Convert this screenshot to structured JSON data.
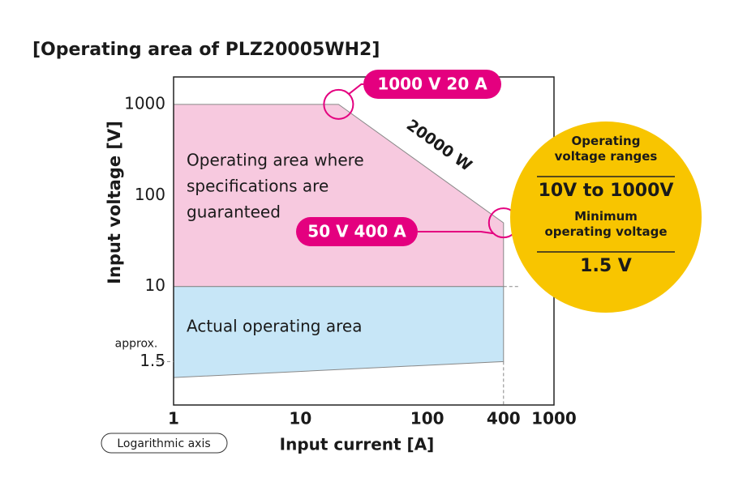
{
  "chart_data": {
    "type": "area",
    "title": "[Operating area of PLZ20005WH2]",
    "x_label": "Input current [A]",
    "y_label": "Input voltage [V]",
    "x_scale": "log",
    "y_scale": "log",
    "xlim": [
      1,
      1000
    ],
    "xticks": [
      1,
      10,
      100,
      400,
      1000
    ],
    "ylim": [
      0.5,
      2000
    ],
    "yticks": [
      1.5,
      10,
      100,
      1000
    ],
    "ytick_note": "approx.",
    "axis_note": "Logarithmic axis",
    "series": [
      {
        "label": [
          "Operating area where",
          "specifications are",
          "guaranteed"
        ],
        "color": "#f7c9df",
        "x": [
          1,
          20,
          400,
          400,
          1
        ],
        "values": [
          1000,
          1000,
          50,
          10,
          10
        ]
      },
      {
        "label": [
          "Actual operating area"
        ],
        "color": "#c7e6f7",
        "x": [
          1,
          400,
          400,
          1
        ],
        "values": [
          10,
          10,
          1.5,
          1
        ]
      }
    ],
    "points": [
      {
        "label": "1000 V 20 A",
        "x": 20,
        "y": 1000
      },
      {
        "label": "50 V 400 A",
        "x": 400,
        "y": 50
      }
    ],
    "power_label": "20000 W",
    "info": {
      "color": "#f8c500",
      "items": [
        {
          "heading": "Operating voltage ranges",
          "value": "10V to 1000V"
        },
        {
          "heading": "Minimum operating voltage",
          "value": "1.5 V"
        }
      ]
    }
  }
}
